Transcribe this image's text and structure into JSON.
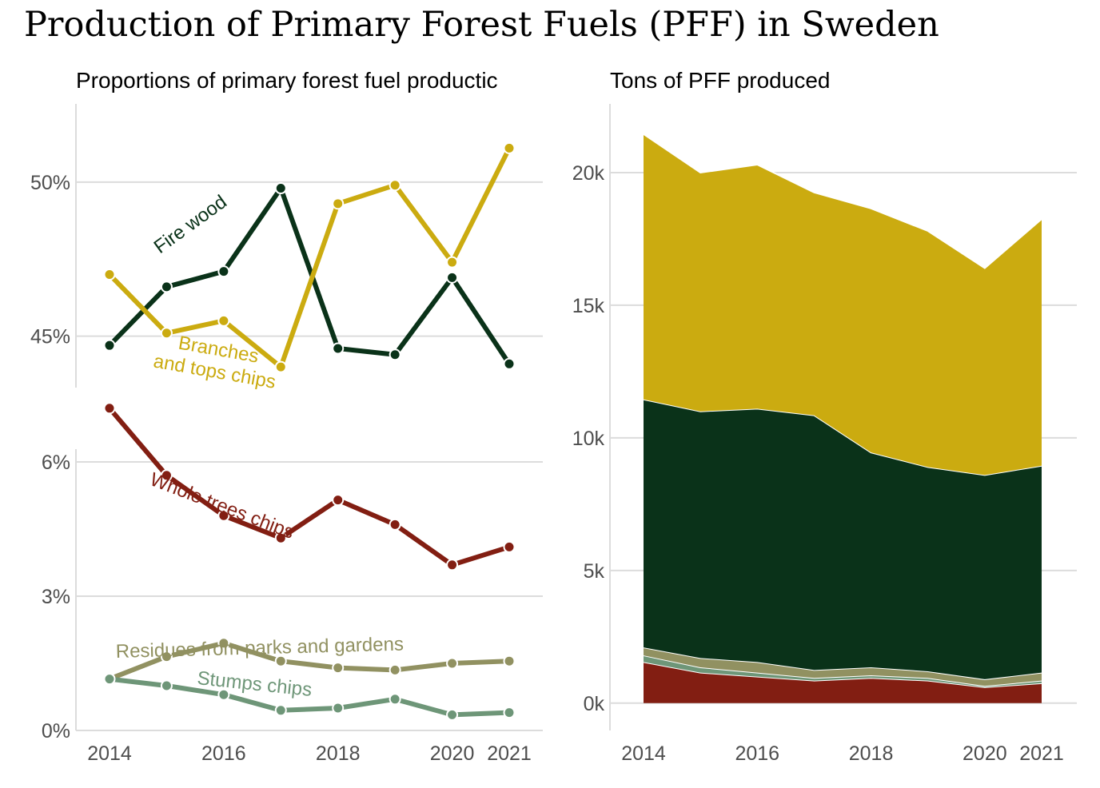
{
  "title": "Production of Primary Forest Fuels (PFF) in Sweden",
  "chart_data": [
    {
      "type": "line",
      "subtitle": "Proportions of primary forest fuel productic",
      "panel": "upper",
      "x": [
        2014,
        2015,
        2016,
        2017,
        2018,
        2019,
        2020,
        2021
      ],
      "ylim": [
        42.5,
        51.5
      ],
      "yticks": [
        45,
        50
      ],
      "yticklabels": [
        "45%",
        "50%"
      ],
      "series": [
        {
          "name": "Fire wood",
          "label": "Fire wood",
          "color": "#0a3219",
          "values": [
            44.7,
            46.6,
            47.1,
            49.8,
            44.6,
            44.4,
            46.9,
            44.1
          ]
        },
        {
          "name": "Branches and tops chips",
          "label_lines": [
            "Branches",
            "and tops chips"
          ],
          "color": "#cbab10",
          "values": [
            47.0,
            45.1,
            45.5,
            44.0,
            49.3,
            49.9,
            47.4,
            51.1
          ]
        }
      ]
    },
    {
      "type": "line",
      "panel": "lower",
      "x": [
        2014,
        2015,
        2016,
        2017,
        2018,
        2019,
        2020,
        2021
      ],
      "ylim": [
        0,
        7.5
      ],
      "yticks": [
        0,
        3,
        6
      ],
      "yticklabels": [
        "0%",
        "3%",
        "6%"
      ],
      "series": [
        {
          "name": "Whole trees chips",
          "label": "Whole trees chips",
          "color": "#821e12",
          "values": [
            7.2,
            5.7,
            4.8,
            4.3,
            5.15,
            4.6,
            3.7,
            4.1
          ]
        },
        {
          "name": "Residues from parks and gardens",
          "label": "Residues from parks and gardens",
          "color": "#919161",
          "values": [
            1.15,
            1.65,
            1.95,
            1.55,
            1.4,
            1.35,
            1.5,
            1.55
          ]
        },
        {
          "name": "Stumps chips",
          "label": "Stumps chips",
          "color": "#6e9678",
          "values": [
            1.15,
            1.0,
            0.8,
            0.45,
            0.5,
            0.7,
            0.35,
            0.4
          ]
        }
      ]
    },
    {
      "type": "area",
      "subtitle": "Tons of PFF produced",
      "x": [
        2014,
        2015,
        2016,
        2017,
        2018,
        2019,
        2020,
        2021
      ],
      "ylim": [
        -1000,
        22500
      ],
      "yticks": [
        0,
        5000,
        10000,
        15000,
        20000
      ],
      "yticklabels": [
        "0k",
        "5k",
        "10k",
        "15k",
        "20k"
      ],
      "stacked": true,
      "series": [
        {
          "name": "Whole trees chips",
          "color": "#821e12",
          "values": [
            1550,
            1150,
            1000,
            850,
            950,
            850,
            600,
            750
          ]
        },
        {
          "name": "Stumps chips",
          "color": "#6e9678",
          "values": [
            250,
            200,
            150,
            100,
            100,
            100,
            50,
            100
          ]
        },
        {
          "name": "Residues from parks and gardens",
          "color": "#919161",
          "values": [
            300,
            350,
            400,
            300,
            300,
            250,
            250,
            300
          ]
        },
        {
          "name": "Fire wood",
          "color": "#0a3219",
          "values": [
            9350,
            9300,
            9550,
            9600,
            8100,
            7700,
            7700,
            7800
          ]
        },
        {
          "name": "Branches and tops chips",
          "color": "#cbab10",
          "values": [
            10000,
            9000,
            9200,
            8400,
            9200,
            8900,
            7800,
            9300
          ]
        }
      ]
    }
  ],
  "xticklabels": [
    "2014",
    "2016",
    "2018",
    "2020",
    "2021"
  ],
  "xtickvalues": [
    2014,
    2016,
    2018,
    2020,
    2021
  ]
}
